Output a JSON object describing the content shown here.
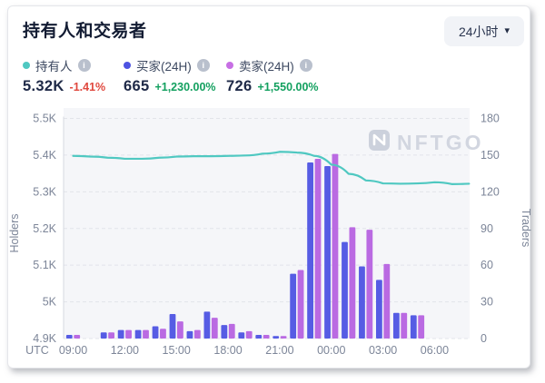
{
  "header": {
    "title": "持有人和交易者",
    "range_selector": {
      "label": "24小时"
    }
  },
  "icons": {
    "caret": "▾",
    "info": "i"
  },
  "legend": [
    {
      "name": "持有人",
      "color": "#4fc8c1",
      "value": "5.32K",
      "change": "-1.41%",
      "direction": "down"
    },
    {
      "name": "买家(24H)",
      "color": "#4d53e2",
      "value": "665",
      "change": "+1,230.00%",
      "direction": "up"
    },
    {
      "name": "卖家(24H)",
      "color": "#c76fe4",
      "value": "726",
      "change": "+1,550.00%",
      "direction": "up"
    }
  ],
  "watermark": "NFTGO",
  "chart_data": {
    "type": "line+bar",
    "x_prefix": "UTC",
    "x": [
      "09:00",
      "10:00",
      "11:00",
      "12:00",
      "13:00",
      "14:00",
      "15:00",
      "16:00",
      "17:00",
      "18:00",
      "19:00",
      "20:00",
      "21:00",
      "22:00",
      "23:00",
      "00:00",
      "01:00",
      "02:00",
      "03:00",
      "04:00",
      "05:00",
      "06:00",
      "07:00",
      "08:00"
    ],
    "x_visible_ticks": [
      "09:00",
      "12:00",
      "15:00",
      "18:00",
      "21:00",
      "00:00",
      "03:00",
      "06:00"
    ],
    "left_axis": {
      "label": "Holders",
      "min": 4900,
      "max": 5500,
      "tick_step": 100,
      "ticks": [
        "4.9K",
        "5K",
        "5.1K",
        "5.2K",
        "5.3K",
        "5.4K",
        "5.5K"
      ]
    },
    "right_axis": {
      "label": "Traders",
      "min": 0,
      "max": 180,
      "tick_step": 30,
      "ticks": [
        "0",
        "30",
        "60",
        "90",
        "120",
        "150",
        "180"
      ]
    },
    "grid": "horizontal-dashed",
    "series": [
      {
        "name": "持有人",
        "type": "line",
        "axis": "left",
        "color": "#4fc8c1",
        "values": [
          5398,
          5396,
          5393,
          5390,
          5390,
          5393,
          5396,
          5397,
          5397,
          5398,
          5399,
          5404,
          5409,
          5407,
          5398,
          5374,
          5349,
          5331,
          5323,
          5322,
          5323,
          5326,
          5321,
          5322
        ]
      },
      {
        "name": "买家(24H)",
        "type": "bar",
        "axis": "right",
        "color": "#565ce4",
        "values": [
          3,
          0,
          5,
          7,
          7,
          10,
          20,
          6,
          22,
          11,
          5,
          3,
          2,
          53,
          144,
          141,
          79,
          59,
          48,
          21,
          19,
          0,
          0,
          0
        ]
      },
      {
        "name": "卖家(24H)",
        "type": "bar",
        "axis": "right",
        "color": "#ba6ae2",
        "values": [
          3,
          0,
          5,
          7,
          7,
          8,
          14,
          7,
          17,
          12,
          6,
          3,
          2,
          56,
          147,
          151,
          91,
          89,
          61,
          21,
          19,
          0,
          0,
          0
        ]
      }
    ]
  }
}
